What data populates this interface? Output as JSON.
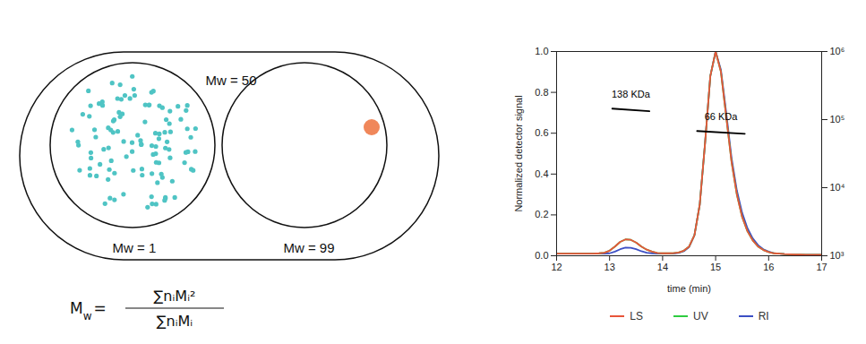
{
  "diagram": {
    "outer_label": "Mw = 50",
    "left_label": "Mw = 1",
    "right_label": "Mw = 99",
    "formula": {
      "lhs": "M",
      "lhs_subscript": "w",
      "equals": "=",
      "numerator": "∑nᵢMᵢ²",
      "denominator": "∑nᵢMᵢ"
    }
  },
  "chart_data": {
    "type": "line",
    "xlabel": "time (min)",
    "ylabel": "Normalized detector signal",
    "x": [
      12,
      12.1,
      12.2,
      12.3,
      12.4,
      12.5,
      12.6,
      12.7,
      12.8,
      12.9,
      13,
      13.1,
      13.2,
      13.3,
      13.4,
      13.5,
      13.6,
      13.7,
      13.8,
      13.9,
      14,
      14.1,
      14.2,
      14.3,
      14.4,
      14.5,
      14.6,
      14.7,
      14.8,
      14.9,
      15,
      15.1,
      15.2,
      15.3,
      15.4,
      15.5,
      15.6,
      15.7,
      15.8,
      15.9,
      16,
      16.1,
      16.2,
      16.3,
      16.4,
      16.5,
      16.6,
      16.7,
      16.8,
      16.9,
      17
    ],
    "xlim": [
      12,
      17
    ],
    "xticks": [
      12,
      13,
      14,
      15,
      16,
      17
    ],
    "ylim": [
      0,
      1
    ],
    "yticks": [
      {
        "value": 0,
        "label": "0.0"
      },
      0.2,
      0.4,
      0.6,
      0.8,
      {
        "value": 1,
        "label": "1.0"
      }
    ],
    "y2lim": [
      1000,
      1000000
    ],
    "y2ticks": [
      {
        "value": 1000,
        "label": "10³"
      },
      {
        "value": 10000,
        "label": "10⁴"
      },
      {
        "value": 100000,
        "label": "10⁵"
      },
      {
        "value": 1000000,
        "label": "10⁶"
      }
    ],
    "log": "y2",
    "legend": "bottom",
    "series": [
      {
        "name": "LS",
        "color": "#e8553a",
        "values": [
          0.01,
          0.01,
          0.01,
          0.01,
          0.01,
          0.01,
          0.01,
          0.01,
          0.012,
          0.015,
          0.025,
          0.045,
          0.068,
          0.08,
          0.078,
          0.065,
          0.045,
          0.03,
          0.02,
          0.014,
          0.012,
          0.012,
          0.013,
          0.016,
          0.025,
          0.045,
          0.1,
          0.25,
          0.55,
          0.88,
          1.0,
          0.9,
          0.68,
          0.46,
          0.3,
          0.19,
          0.12,
          0.075,
          0.045,
          0.028,
          0.018,
          0.012,
          0.01,
          0.008,
          0.007,
          0.006,
          0.006,
          0.005,
          0.005,
          0.005,
          0.005
        ]
      },
      {
        "name": "UV",
        "color": "#2ecc40",
        "values": [
          0.01,
          0.01,
          0.01,
          0.01,
          0.01,
          0.01,
          0.01,
          0.01,
          0.012,
          0.015,
          0.025,
          0.045,
          0.068,
          0.08,
          0.078,
          0.065,
          0.045,
          0.03,
          0.02,
          0.014,
          0.012,
          0.012,
          0.013,
          0.016,
          0.025,
          0.045,
          0.1,
          0.25,
          0.55,
          0.88,
          1.0,
          0.9,
          0.68,
          0.46,
          0.3,
          0.19,
          0.12,
          0.075,
          0.045,
          0.028,
          0.018,
          0.012,
          0.01,
          0.008,
          0.007,
          0.006,
          0.006,
          0.005,
          0.005,
          0.005,
          0.005
        ]
      },
      {
        "name": "RI",
        "color": "#3c4fc4",
        "values": [
          0.01,
          0.01,
          0.01,
          0.01,
          0.01,
          0.01,
          0.01,
          0.01,
          0.01,
          0.011,
          0.012,
          0.02,
          0.032,
          0.04,
          0.039,
          0.032,
          0.022,
          0.015,
          0.012,
          0.01,
          0.01,
          0.01,
          0.011,
          0.014,
          0.022,
          0.043,
          0.1,
          0.25,
          0.55,
          0.88,
          1.0,
          0.91,
          0.7,
          0.48,
          0.32,
          0.21,
          0.135,
          0.085,
          0.052,
          0.032,
          0.02,
          0.013,
          0.01,
          0.008,
          0.007,
          0.006,
          0.006,
          0.005,
          0.005,
          0.005,
          0.005
        ]
      }
    ],
    "annotations": [
      {
        "text": "138 KDa",
        "axis": "y2",
        "color": "#000000",
        "x": [
          13.05,
          13.75
        ],
        "values": [
          145000,
          133000
        ]
      },
      {
        "text": "66 KDa",
        "axis": "y2",
        "color": "#000000",
        "x": [
          14.65,
          15.55
        ],
        "values": [
          68000,
          62000
        ]
      }
    ]
  }
}
